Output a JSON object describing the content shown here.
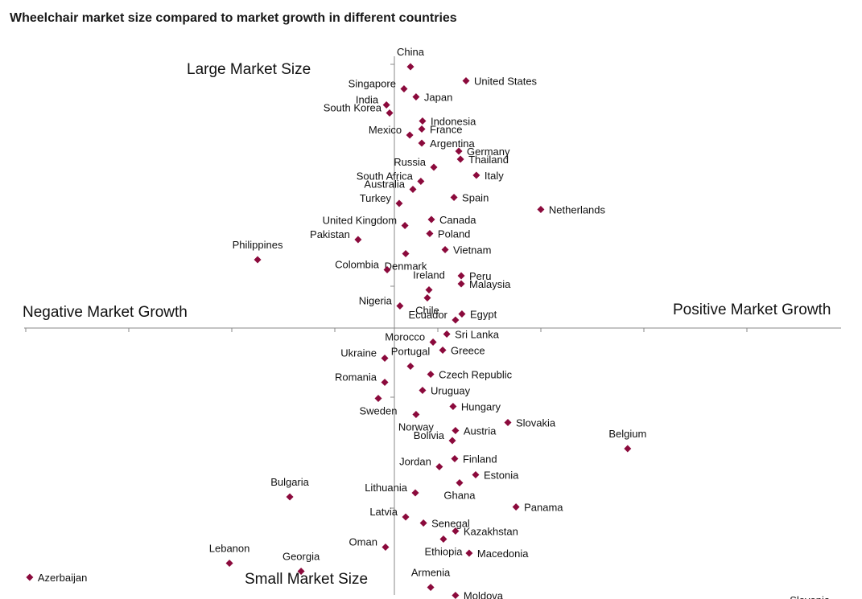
{
  "chart_data": {
    "type": "scatter",
    "title": "Wheelchair market size compared to market growth in different countries",
    "quadrant_labels": {
      "top": "Large Market Size",
      "bottom": "Small Market Size",
      "left": "Negative Market Growth",
      "right": "Positive Market Growth"
    },
    "xlim": [
      -20,
      23.5
    ],
    "ylim": [
      -14.8,
      14.3
    ],
    "marker_color": "#8B0A3C",
    "points": [
      {
        "name": "China",
        "x": 0.87,
        "y": 13.0,
        "align": "above"
      },
      {
        "name": "United States",
        "x": 3.87,
        "y": 12.3,
        "align": "right"
      },
      {
        "name": "Singapore",
        "x": 0.52,
        "y": 11.9,
        "align": "left"
      },
      {
        "name": "Japan",
        "x": 1.17,
        "y": 11.5,
        "align": "right"
      },
      {
        "name": "India",
        "x": -0.43,
        "y": 11.1,
        "align": "left"
      },
      {
        "name": "South Korea",
        "x": -0.26,
        "y": 10.7,
        "align": "left"
      },
      {
        "name": "Indonesia",
        "x": 1.52,
        "y": 10.3,
        "align": "right"
      },
      {
        "name": "France",
        "x": 1.48,
        "y": 9.9,
        "align": "right"
      },
      {
        "name": "Mexico",
        "x": 0.83,
        "y": 9.6,
        "align": "left"
      },
      {
        "name": "Argentina",
        "x": 1.48,
        "y": 9.2,
        "align": "right"
      },
      {
        "name": "Germany",
        "x": 3.48,
        "y": 8.8,
        "align": "right"
      },
      {
        "name": "Thailand",
        "x": 3.57,
        "y": 8.4,
        "align": "right"
      },
      {
        "name": "Russia",
        "x": 2.13,
        "y": 8.0,
        "align": "left"
      },
      {
        "name": "Italy",
        "x": 4.43,
        "y": 7.6,
        "align": "right"
      },
      {
        "name": "South Africa",
        "x": 1.43,
        "y": 7.3,
        "align": "left"
      },
      {
        "name": "Australia",
        "x": 1.0,
        "y": 6.9,
        "align": "left"
      },
      {
        "name": "Spain",
        "x": 3.22,
        "y": 6.5,
        "align": "right"
      },
      {
        "name": "Turkey",
        "x": 0.26,
        "y": 6.2,
        "align": "left"
      },
      {
        "name": "Netherlands",
        "x": 7.91,
        "y": 5.9,
        "align": "right"
      },
      {
        "name": "Canada",
        "x": 2.0,
        "y": 5.4,
        "align": "right"
      },
      {
        "name": "United Kingdom",
        "x": 0.57,
        "y": 5.1,
        "align": "left"
      },
      {
        "name": "Poland",
        "x": 1.91,
        "y": 4.7,
        "align": "right"
      },
      {
        "name": "Pakistan",
        "x": -1.96,
        "y": 4.4,
        "align": "left"
      },
      {
        "name": "Philippines",
        "x": -7.39,
        "y": 3.4,
        "align": "above"
      },
      {
        "name": "Vietnam",
        "x": 2.74,
        "y": 3.9,
        "align": "right"
      },
      {
        "name": "Denmark",
        "x": 0.61,
        "y": 3.7,
        "align": "below"
      },
      {
        "name": "Colombia",
        "x": -0.39,
        "y": 2.9,
        "align": "left"
      },
      {
        "name": "Peru",
        "x": 3.61,
        "y": 2.6,
        "align": "right"
      },
      {
        "name": "Ireland",
        "x": 1.87,
        "y": 1.9,
        "align": "above"
      },
      {
        "name": "Malaysia",
        "x": 3.61,
        "y": 2.2,
        "align": "right"
      },
      {
        "name": "Nigeria",
        "x": 0.3,
        "y": 1.1,
        "align": "left"
      },
      {
        "name": "Chile",
        "x": 1.78,
        "y": 1.5,
        "align": "below"
      },
      {
        "name": "Egypt",
        "x": 3.65,
        "y": 0.7,
        "align": "right"
      },
      {
        "name": "Ecuador",
        "x": 3.3,
        "y": 0.4,
        "align": "left"
      },
      {
        "name": "Sri Lanka",
        "x": 2.83,
        "y": -0.3,
        "align": "right"
      },
      {
        "name": "Morocco",
        "x": 2.09,
        "y": -0.7,
        "align": "left"
      },
      {
        "name": "Greece",
        "x": 2.61,
        "y": -1.1,
        "align": "right"
      },
      {
        "name": "Ukraine",
        "x": -0.52,
        "y": -1.5,
        "align": "left"
      },
      {
        "name": "Portugal",
        "x": 0.87,
        "y": -1.9,
        "align": "above"
      },
      {
        "name": "Czech Republic",
        "x": 1.96,
        "y": -2.3,
        "align": "right"
      },
      {
        "name": "Romania",
        "x": -0.52,
        "y": -2.7,
        "align": "left"
      },
      {
        "name": "Uruguay",
        "x": 1.52,
        "y": -3.1,
        "align": "right"
      },
      {
        "name": "Sweden",
        "x": -0.87,
        "y": -3.5,
        "align": "below"
      },
      {
        "name": "Hungary",
        "x": 3.17,
        "y": -3.9,
        "align": "right"
      },
      {
        "name": "Norway",
        "x": 1.17,
        "y": -4.3,
        "align": "below"
      },
      {
        "name": "Slovakia",
        "x": 6.13,
        "y": -4.7,
        "align": "right"
      },
      {
        "name": "Austria",
        "x": 3.3,
        "y": -5.1,
        "align": "right"
      },
      {
        "name": "Bolivia",
        "x": 3.13,
        "y": -5.6,
        "align": "left"
      },
      {
        "name": "Belgium",
        "x": 12.6,
        "y": -6.0,
        "align": "above"
      },
      {
        "name": "Finland",
        "x": 3.26,
        "y": -6.5,
        "align": "right"
      },
      {
        "name": "Jordan",
        "x": 2.43,
        "y": -6.9,
        "align": "left"
      },
      {
        "name": "Estonia",
        "x": 4.39,
        "y": -7.3,
        "align": "right"
      },
      {
        "name": "Ghana",
        "x": 3.52,
        "y": -7.7,
        "align": "below"
      },
      {
        "name": "Bulgaria",
        "x": -5.65,
        "y": -8.4,
        "align": "above"
      },
      {
        "name": "Lithuania",
        "x": 1.13,
        "y": -8.2,
        "align": "left"
      },
      {
        "name": "Panama",
        "x": 6.57,
        "y": -8.9,
        "align": "right"
      },
      {
        "name": "Latvia",
        "x": 0.61,
        "y": -9.4,
        "align": "left"
      },
      {
        "name": "Senegal",
        "x": 1.57,
        "y": -9.7,
        "align": "right"
      },
      {
        "name": "Kazakhstan",
        "x": 3.3,
        "y": -10.1,
        "align": "right"
      },
      {
        "name": "Ethiopia",
        "x": 2.65,
        "y": -10.5,
        "align": "below"
      },
      {
        "name": "Oman",
        "x": -0.48,
        "y": -10.9,
        "align": "left"
      },
      {
        "name": "Lebanon",
        "x": -8.91,
        "y": -11.7,
        "align": "above"
      },
      {
        "name": "Macedonia",
        "x": 4.04,
        "y": -11.2,
        "align": "right"
      },
      {
        "name": "Georgia",
        "x": -5.04,
        "y": -12.1,
        "align": "above"
      },
      {
        "name": "Azerbaijan",
        "x": -19.7,
        "y": -12.4,
        "align": "right"
      },
      {
        "name": "Armenia",
        "x": 1.96,
        "y": -12.9,
        "align": "above"
      },
      {
        "name": "Moldova",
        "x": 3.3,
        "y": -13.3,
        "align": "right"
      },
      {
        "name": "Slovenia",
        "x": 23.96,
        "y": -13.8,
        "align": "left"
      }
    ]
  }
}
